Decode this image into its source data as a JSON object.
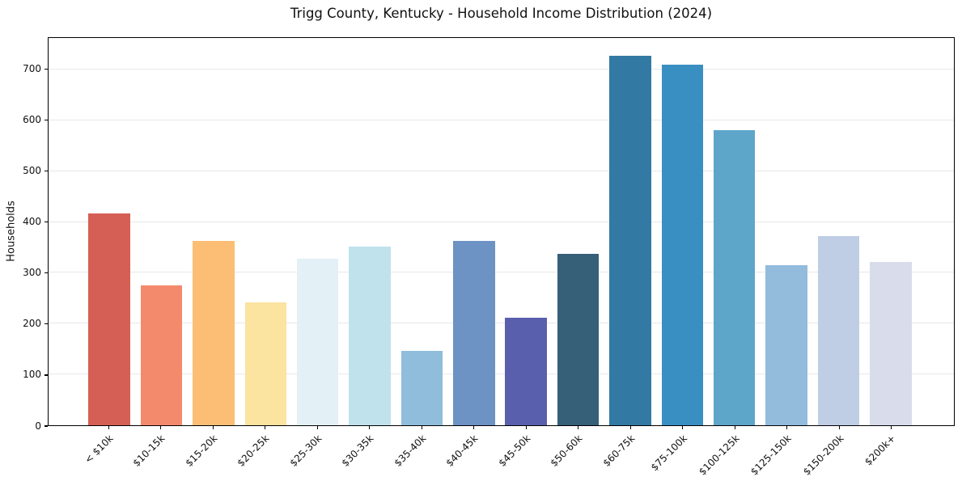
{
  "chart_data": {
    "type": "bar",
    "title": "Trigg County, Kentucky - Household Income Distribution (2024)",
    "xlabel": "",
    "ylabel": "Households",
    "categories": [
      "< $10k",
      "$10-15k",
      "$15-20k",
      "$20-25k",
      "$25-30k",
      "$30-35k",
      "$35-40k",
      "$40-45k",
      "$45-50k",
      "$50-60k",
      "$60-75k",
      "$75-100k",
      "$100-125k",
      "$125-150k",
      "$150-200k",
      "$200k+"
    ],
    "values": [
      417,
      275,
      363,
      242,
      327,
      352,
      147,
      363,
      212,
      337,
      727,
      709,
      580,
      315,
      373,
      322
    ],
    "bar_colors": [
      "#d65f55",
      "#f48a6c",
      "#fcbe75",
      "#fbe3a0",
      "#e3f1f6",
      "#c0e2ed",
      "#90bddc",
      "#6d92c4",
      "#5a5fad",
      "#365f78",
      "#327aa3",
      "#3a8fc2",
      "#5ea5ca",
      "#92bbdc",
      "#bfcde5",
      "#d9dcea"
    ],
    "yticks": [
      0,
      100,
      200,
      300,
      400,
      500,
      600,
      700
    ],
    "ylim": [
      0,
      762
    ],
    "grid": "horizontal",
    "legend": "none",
    "x_tick_rotation": 45,
    "colors": {
      "background": "#ffffff",
      "gridline": "#e8e8e8",
      "axis": "#000000",
      "text": "#111111"
    }
  }
}
